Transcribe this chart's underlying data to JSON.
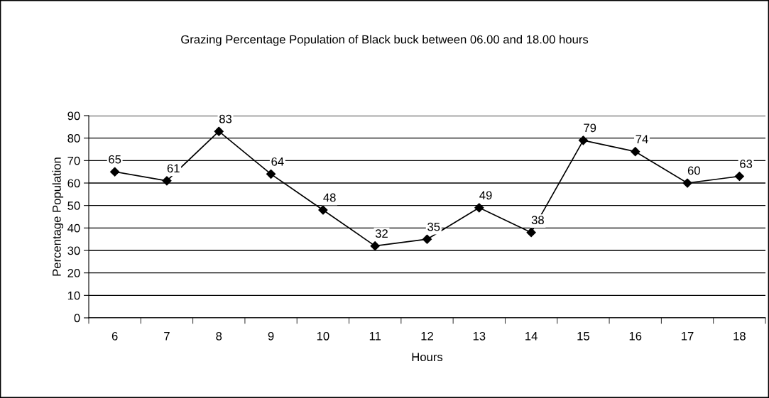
{
  "chart_data": {
    "type": "line",
    "title": "Grazing Percentage Population of Black buck between 06.00 and 18.00 hours",
    "xlabel": "Hours",
    "ylabel": "Percentage Population",
    "categories": [
      "6",
      "7",
      "8",
      "9",
      "10",
      "11",
      "12",
      "13",
      "14",
      "15",
      "16",
      "17",
      "18"
    ],
    "series": [
      {
        "color": "#000000",
        "values": [
          65,
          61,
          83,
          64,
          48,
          32,
          35,
          49,
          38,
          79,
          74,
          60,
          63
        ]
      }
    ],
    "ylim": [
      0,
      90
    ],
    "yticks": [
      0,
      10,
      20,
      30,
      40,
      50,
      60,
      70,
      80,
      90
    ],
    "grid": "y",
    "legend": false,
    "marker": "diamond",
    "line_style": "solid",
    "data_labels": true
  }
}
